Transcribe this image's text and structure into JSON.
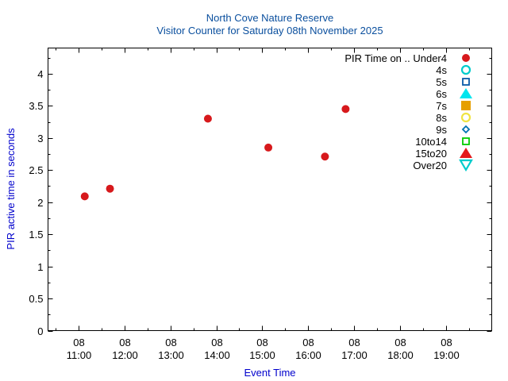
{
  "chart_data": {
    "type": "scatter",
    "title": "North Cove Nature Reserve",
    "subtitle": "Visitor Counter for Saturday 08th November 2025",
    "xlabel": "Event Time",
    "ylabel": "PIR active time in seconds",
    "xlim": [
      "10:20",
      "20:00"
    ],
    "ylim": [
      0,
      4.4
    ],
    "x_ticks": [
      {
        "day": "08",
        "time": "11:00"
      },
      {
        "day": "08",
        "time": "12:00"
      },
      {
        "day": "08",
        "time": "13:00"
      },
      {
        "day": "08",
        "time": "14:00"
      },
      {
        "day": "08",
        "time": "15:00"
      },
      {
        "day": "08",
        "time": "16:00"
      },
      {
        "day": "08",
        "time": "17:00"
      },
      {
        "day": "08",
        "time": "18:00"
      },
      {
        "day": "08",
        "time": "19:00"
      }
    ],
    "y_ticks": [
      "0",
      "0.5",
      "1",
      "1.5",
      "2",
      "2.5",
      "3",
      "3.5",
      "4"
    ],
    "grid": false,
    "legend_position": "top-right",
    "series": [
      {
        "name": "PIR Time on .. Under4",
        "marker": "circle-filled",
        "color": "#d7191c",
        "points": [
          {
            "x": "11:08",
            "y": 2.09
          },
          {
            "x": "11:41",
            "y": 2.21
          },
          {
            "x": "13:49",
            "y": 3.3
          },
          {
            "x": "15:08",
            "y": 2.85
          },
          {
            "x": "16:22",
            "y": 2.71
          },
          {
            "x": "16:49",
            "y": 3.45
          }
        ]
      },
      {
        "name": "4s",
        "marker": "circle-open",
        "color": "#00cccc",
        "points": []
      },
      {
        "name": "5s",
        "marker": "square-open",
        "color": "#0a5aa8",
        "points": []
      },
      {
        "name": "6s",
        "marker": "triangle-filled",
        "color": "#00e5ee",
        "points": []
      },
      {
        "name": "7s",
        "marker": "square-filled",
        "color": "#e69f00",
        "points": []
      },
      {
        "name": "8s",
        "marker": "circle-open",
        "color": "#f0e442",
        "points": []
      },
      {
        "name": "9s",
        "marker": "diamond-open",
        "color": "#0072b2",
        "points": []
      },
      {
        "name": "10to14",
        "marker": "square-open",
        "color": "#00cc00",
        "points": []
      },
      {
        "name": "15to20",
        "marker": "triangle-filled",
        "color": "#e41a1c",
        "points": []
      },
      {
        "name": "Over20",
        "marker": "triangle-down-open",
        "color": "#00cccc",
        "points": []
      }
    ]
  }
}
